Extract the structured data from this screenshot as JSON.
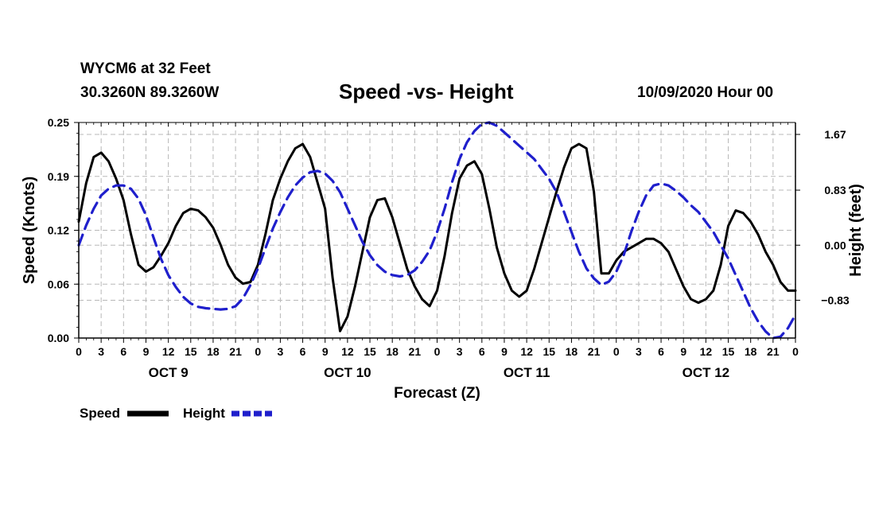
{
  "header": {
    "station": "WYCM6 at 32 Feet",
    "coords": "30.3260N 89.3260W",
    "title": "Speed -vs- Height",
    "run": "10/09/2020 Hour 00"
  },
  "chart_data": {
    "type": "line",
    "title": "Speed -vs- Height",
    "xlabel": "Forecast (Z)",
    "ylabel": "Speed (Knots)",
    "y2label": "Height (feet)",
    "xlim": [
      0,
      96
    ],
    "ylim": [
      0,
      0.25
    ],
    "y2lim": [
      -1.4,
      1.85
    ],
    "grid": true,
    "x_tick_step_hours": 3,
    "x_tick_labels": [
      "0",
      "3",
      "6",
      "9",
      "12",
      "15",
      "18",
      "21"
    ],
    "day_labels": [
      {
        "label": "OCT 9",
        "hour": 12
      },
      {
        "label": "OCT 10",
        "hour": 36
      },
      {
        "label": "OCT 11",
        "hour": 60
      },
      {
        "label": "OCT 12",
        "hour": 84
      }
    ],
    "y_ticks": [
      {
        "value": 0.0,
        "label": "0.00"
      },
      {
        "value": 0.0625,
        "label": "0.06"
      },
      {
        "value": 0.125,
        "label": "0.12"
      },
      {
        "value": 0.1875,
        "label": "0.19"
      },
      {
        "value": 0.25,
        "label": "0.25"
      }
    ],
    "y2_ticks": [
      {
        "value": -0.83,
        "label": "-0.83"
      },
      {
        "value": 0.0,
        "label": "0.00"
      },
      {
        "value": 0.83,
        "label": "0.83"
      },
      {
        "value": 1.67,
        "label": "1.67"
      }
    ],
    "legend": {
      "position": "bottom-left",
      "entries": [
        "Speed",
        "Height"
      ]
    },
    "series": [
      {
        "name": "Speed",
        "axis": "left",
        "color": "#000000",
        "dash": "solid",
        "x": [
          0,
          1,
          2,
          3,
          4,
          5,
          6,
          7,
          8,
          9,
          10,
          11,
          12,
          13,
          14,
          15,
          16,
          17,
          18,
          19,
          20,
          21,
          22,
          23,
          24,
          25,
          26,
          27,
          28,
          29,
          30,
          31,
          32,
          33,
          34,
          35,
          36,
          37,
          38,
          39,
          40,
          41,
          42,
          43,
          44,
          45,
          46,
          47,
          48,
          49,
          50,
          51,
          52,
          53,
          54,
          55,
          56,
          57,
          58,
          59,
          60,
          61,
          62,
          63,
          64,
          65,
          66,
          67,
          68,
          69,
          70,
          71,
          72,
          73,
          74,
          75,
          76,
          77,
          78,
          79,
          80,
          81,
          82,
          83,
          84,
          85,
          86,
          87,
          88,
          89,
          90,
          91,
          92,
          93,
          94,
          95,
          96
        ],
        "values": [
          0.135,
          0.18,
          0.21,
          0.215,
          0.205,
          0.185,
          0.16,
          0.12,
          0.085,
          0.077,
          0.082,
          0.095,
          0.11,
          0.13,
          0.145,
          0.15,
          0.148,
          0.14,
          0.128,
          0.108,
          0.085,
          0.07,
          0.063,
          0.065,
          0.085,
          0.12,
          0.16,
          0.185,
          0.205,
          0.22,
          0.225,
          0.21,
          0.18,
          0.15,
          0.07,
          0.008,
          0.025,
          0.06,
          0.1,
          0.14,
          0.16,
          0.162,
          0.14,
          0.11,
          0.08,
          0.06,
          0.045,
          0.037,
          0.055,
          0.095,
          0.145,
          0.185,
          0.2,
          0.205,
          0.19,
          0.15,
          0.105,
          0.075,
          0.055,
          0.048,
          0.055,
          0.08,
          0.11,
          0.14,
          0.17,
          0.198,
          0.22,
          0.225,
          0.22,
          0.17,
          0.075,
          0.075,
          0.09,
          0.1,
          0.105,
          0.11,
          0.115,
          0.115,
          0.11,
          0.1,
          0.08,
          0.06,
          0.045,
          0.041,
          0.045,
          0.055,
          0.085,
          0.13,
          0.148,
          0.145,
          0.135,
          0.12,
          0.1,
          0.085,
          0.065,
          0.055,
          0.055
        ]
      },
      {
        "name": "Height",
        "axis": "right",
        "color": "#1f1fcc",
        "dash": "dashed",
        "x": [
          0,
          1,
          2,
          3,
          4,
          5,
          6,
          7,
          8,
          9,
          10,
          11,
          12,
          13,
          14,
          15,
          16,
          17,
          18,
          19,
          20,
          21,
          22,
          23,
          24,
          25,
          26,
          27,
          28,
          29,
          30,
          31,
          32,
          33,
          34,
          35,
          36,
          37,
          38,
          39,
          40,
          41,
          42,
          43,
          44,
          45,
          46,
          47,
          48,
          49,
          50,
          51,
          52,
          53,
          54,
          55,
          56,
          57,
          58,
          59,
          60,
          61,
          62,
          63,
          64,
          65,
          66,
          67,
          68,
          69,
          70,
          71,
          72,
          73,
          74,
          75,
          76,
          77,
          78,
          79,
          80,
          81,
          82,
          83,
          84,
          85,
          86,
          87,
          88,
          89,
          90,
          91,
          92,
          93,
          94,
          95,
          96
        ],
        "values": [
          0.0,
          0.3,
          0.55,
          0.75,
          0.85,
          0.9,
          0.9,
          0.85,
          0.7,
          0.45,
          0.12,
          -0.2,
          -0.45,
          -0.63,
          -0.78,
          -0.88,
          -0.93,
          -0.95,
          -0.96,
          -0.97,
          -0.96,
          -0.92,
          -0.8,
          -0.6,
          -0.35,
          -0.05,
          0.25,
          0.5,
          0.72,
          0.9,
          1.02,
          1.1,
          1.12,
          1.08,
          0.97,
          0.8,
          0.55,
          0.3,
          0.05,
          -0.15,
          -0.3,
          -0.4,
          -0.45,
          -0.47,
          -0.45,
          -0.38,
          -0.25,
          -0.08,
          0.2,
          0.55,
          0.95,
          1.3,
          1.55,
          1.72,
          1.83,
          1.85,
          1.8,
          1.7,
          1.6,
          1.5,
          1.4,
          1.3,
          1.15,
          1.0,
          0.8,
          0.5,
          0.2,
          -0.1,
          -0.35,
          -0.5,
          -0.6,
          -0.55,
          -0.4,
          -0.15,
          0.2,
          0.5,
          0.75,
          0.9,
          0.93,
          0.9,
          0.82,
          0.72,
          0.6,
          0.5,
          0.35,
          0.2,
          0.0,
          -0.2,
          -0.45,
          -0.7,
          -0.95,
          -1.15,
          -1.3,
          -1.4,
          -1.38,
          -1.25,
          -1.05
        ]
      }
    ]
  }
}
